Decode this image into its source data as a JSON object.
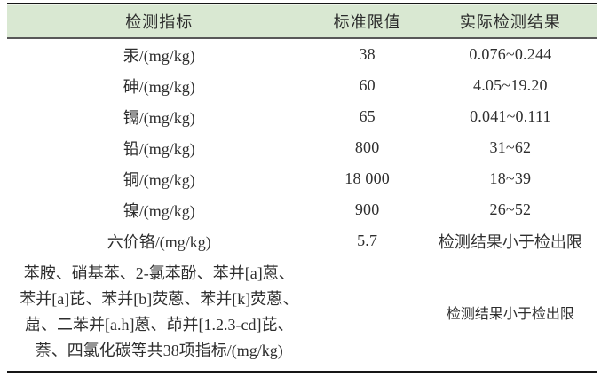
{
  "table": {
    "headers": {
      "indicator": "检测指标",
      "limit": "标准限值",
      "result": "实际检测结果"
    },
    "rows": [
      {
        "indicator": "汞/(mg/kg)",
        "limit": "38",
        "result": "0.076~0.244"
      },
      {
        "indicator": "砷/(mg/kg)",
        "limit": "60",
        "result": "4.05~19.20"
      },
      {
        "indicator": "镉/(mg/kg)",
        "limit": "65",
        "result": "0.041~0.111"
      },
      {
        "indicator": "铅/(mg/kg)",
        "limit": "800",
        "result": "31~62"
      },
      {
        "indicator": "铜/(mg/kg)",
        "limit": "18 000",
        "result": "18~39"
      },
      {
        "indicator": "镍/(mg/kg)",
        "limit": "900",
        "result": "26~52"
      },
      {
        "indicator": "六价铬/(mg/kg)",
        "limit": "5.7",
        "result": "检测结果小于检出限"
      }
    ],
    "multi_row": {
      "indicator_lines": [
        "苯胺、硝基苯、2-氯苯酚、苯并[a]蒽、",
        "苯并[a]芘、苯并[b]荧蒽、苯并[k]荧蒽、",
        "䓛、二苯并[a.h]蒽、茚并[1.2.3-cd]芘、",
        "萘、四氯化碳等共38项指标/(mg/kg)"
      ],
      "limit": "",
      "result": "检测结果小于检出限"
    },
    "colors": {
      "header_bg": "#d9e8d2",
      "border_dark": "#161616",
      "border_mid": "#585858",
      "text": "#2e2e2e"
    }
  }
}
